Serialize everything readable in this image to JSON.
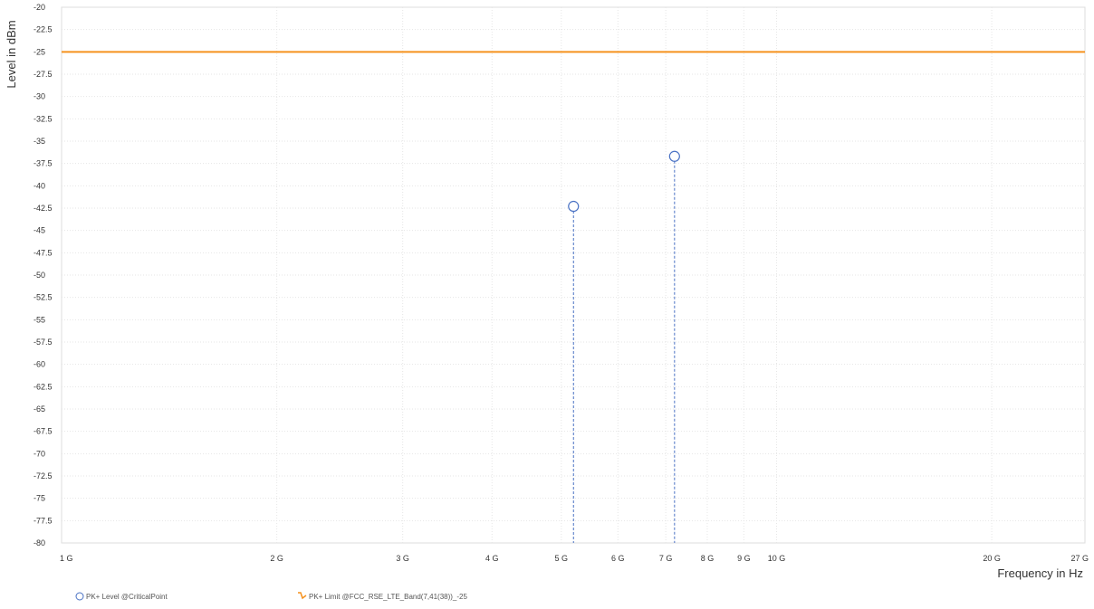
{
  "chart_data": {
    "type": "scatter",
    "title": "",
    "xlabel": "Frequency in Hz",
    "ylabel": "Level in dBm",
    "x_scale": "log",
    "xlim": [
      1000000000,
      27000000000
    ],
    "ylim": [
      -80,
      -20
    ],
    "x_ticks": [
      {
        "value": 1000000000,
        "label": "1 G"
      },
      {
        "value": 2000000000,
        "label": "2 G"
      },
      {
        "value": 3000000000,
        "label": "3 G"
      },
      {
        "value": 4000000000,
        "label": "4 G"
      },
      {
        "value": 5000000000,
        "label": "5 G"
      },
      {
        "value": 6000000000,
        "label": "6 G"
      },
      {
        "value": 7000000000,
        "label": "7 G"
      },
      {
        "value": 8000000000,
        "label": "8 G"
      },
      {
        "value": 9000000000,
        "label": "9 G"
      },
      {
        "value": 10000000000,
        "label": "10 G"
      },
      {
        "value": 20000000000,
        "label": "20 G"
      },
      {
        "value": 27000000000,
        "label": "27 G"
      }
    ],
    "y_ticks": [
      {
        "value": -20,
        "label": "-20"
      },
      {
        "value": -22.5,
        "label": "-22.5"
      },
      {
        "value": -25,
        "label": "-25"
      },
      {
        "value": -27.5,
        "label": "-27.5"
      },
      {
        "value": -30,
        "label": "-30"
      },
      {
        "value": -32.5,
        "label": "-32.5"
      },
      {
        "value": -35,
        "label": "-35"
      },
      {
        "value": -37.5,
        "label": "-37.5"
      },
      {
        "value": -40,
        "label": "-40"
      },
      {
        "value": -42.5,
        "label": "-42.5"
      },
      {
        "value": -45,
        "label": "-45"
      },
      {
        "value": -47.5,
        "label": "-47.5"
      },
      {
        "value": -50,
        "label": "-50"
      },
      {
        "value": -52.5,
        "label": "-52.5"
      },
      {
        "value": -55,
        "label": "-55"
      },
      {
        "value": -57.5,
        "label": "-57.5"
      },
      {
        "value": -60,
        "label": "-60"
      },
      {
        "value": -62.5,
        "label": "-62.5"
      },
      {
        "value": -65,
        "label": "-65"
      },
      {
        "value": -67.5,
        "label": "-67.5"
      },
      {
        "value": -70,
        "label": "-70"
      },
      {
        "value": -72.5,
        "label": "-72.5"
      },
      {
        "value": -75,
        "label": "-75"
      },
      {
        "value": -77.5,
        "label": "-77.5"
      },
      {
        "value": -80,
        "label": "-80"
      }
    ],
    "grid": true,
    "legend_position": "bottom-left",
    "series": [
      {
        "name": "PK+ Level @CriticalPoint",
        "kind": "points",
        "marker": "circle",
        "color": "#4a72c4",
        "points": [
          {
            "x": 5200000000,
            "y": -42.3
          },
          {
            "x": 7200000000,
            "y": -36.7
          }
        ]
      },
      {
        "name": "PK+ Limit @FCC_RSE_LTE_Band(7,41(38))_-25",
        "kind": "limit-line",
        "color": "#f5921e",
        "y": -25
      }
    ]
  }
}
